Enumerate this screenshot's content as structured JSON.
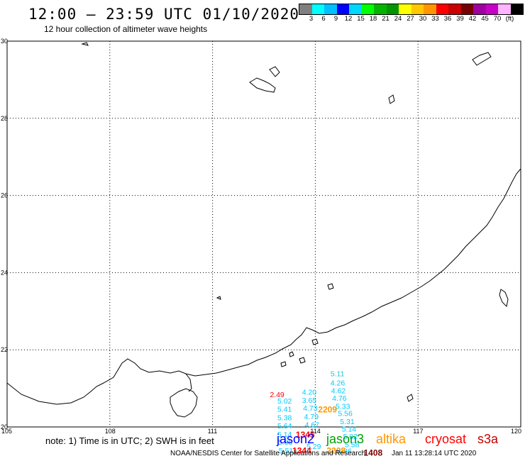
{
  "header": {
    "title": "12:00 – 23:59 UTC 01/10/2020",
    "subtitle": "12 hour collection of altimeter wave heights"
  },
  "colorbar": {
    "colors": [
      "#7f7f7f",
      "#00ffff",
      "#00bfff",
      "#0000ff",
      "#00d7ff",
      "#00ff00",
      "#00b400",
      "#009600",
      "#ffff00",
      "#ffc800",
      "#ff9600",
      "#ff0000",
      "#c80000",
      "#780000",
      "#a000a0",
      "#c800c8",
      "#ffb4ff",
      "#000000"
    ],
    "labels": [
      "3",
      "6",
      "9",
      "12",
      "15",
      "18",
      "21",
      "24",
      "27",
      "30",
      "33",
      "36",
      "39",
      "42",
      "45",
      "70",
      "(ft)"
    ]
  },
  "axes": {
    "lat_labels": [
      "30",
      "28",
      "26",
      "24",
      "22",
      "20"
    ],
    "lon_labels": [
      "105",
      "108",
      "111",
      "114",
      "117",
      "120"
    ]
  },
  "wave_labels": [
    {
      "text": "5.11",
      "lat": 21.39,
      "lon": 114.65,
      "color": "#20c8c8"
    },
    {
      "text": "4.26",
      "lat": 21.15,
      "lon": 114.65,
      "color": "#00c8ff"
    },
    {
      "text": "4.62",
      "lat": 20.95,
      "lon": 114.67,
      "color": "#00c8ff"
    },
    {
      "text": "4.76",
      "lat": 20.75,
      "lon": 114.7,
      "color": "#00c8ff"
    },
    {
      "text": "5.33",
      "lat": 20.54,
      "lon": 114.8,
      "color": "#00c8ff"
    },
    {
      "text": "5.56",
      "lat": 20.36,
      "lon": 114.87,
      "color": "#00c8ff"
    },
    {
      "text": "5.31",
      "lat": 20.15,
      "lon": 114.93,
      "color": "#00c8ff"
    },
    {
      "text": "5.14",
      "lat": 19.95,
      "lon": 114.98,
      "color": "#00c8ff"
    },
    {
      "text": "5.02",
      "lat": 19.76,
      "lon": 115.02,
      "color": "#00c8ff"
    },
    {
      "text": "5.58",
      "lat": 19.55,
      "lon": 115.07,
      "color": "#00c8ff"
    },
    {
      "text": "4.86",
      "lat": 19.38,
      "lon": 114.85,
      "color": "#00c8ff"
    },
    {
      "text": "4.20",
      "lat": 20.91,
      "lon": 113.82,
      "color": "#00c8ff"
    },
    {
      "text": "3.65",
      "lat": 20.7,
      "lon": 113.82,
      "color": "#00c8ff"
    },
    {
      "text": "4.73",
      "lat": 20.5,
      "lon": 113.85,
      "color": "#00c8ff"
    },
    {
      "text": "4.79",
      "lat": 20.28,
      "lon": 113.88,
      "color": "#00c8ff"
    },
    {
      "text": "4.67",
      "lat": 20.06,
      "lon": 113.9,
      "color": "#00c8ff"
    },
    {
      "text": "5.29",
      "lat": 19.5,
      "lon": 113.95,
      "color": "#00c8ff"
    },
    {
      "text": "5.02",
      "lat": 20.68,
      "lon": 113.1,
      "color": "#00c8ff"
    },
    {
      "text": "5.41",
      "lat": 20.47,
      "lon": 113.1,
      "color": "#00c8ff"
    },
    {
      "text": "5.38",
      "lat": 20.25,
      "lon": 113.1,
      "color": "#00c8ff"
    },
    {
      "text": "5.64",
      "lat": 20.04,
      "lon": 113.1,
      "color": "#00c8ff"
    },
    {
      "text": "5.14",
      "lat": 19.82,
      "lon": 113.1,
      "color": "#00c8ff"
    },
    {
      "text": "5.85",
      "lat": 19.61,
      "lon": 113.12,
      "color": "#00c8ff"
    },
    {
      "text": "5.51",
      "lat": 19.39,
      "lon": 113.14,
      "color": "#00c8ff"
    },
    {
      "text": "2.49",
      "lat": 20.85,
      "lon": 112.88,
      "color": "#ff0000"
    }
  ],
  "pass_labels": [
    {
      "text": "2209",
      "lat": 20.45,
      "lon": 114.35,
      "color": "#ff9600"
    },
    {
      "text": "1345",
      "lat": 19.8,
      "lon": 113.7,
      "color": "#ff0000"
    },
    {
      "text": "1344",
      "lat": 19.38,
      "lon": 113.6,
      "color": "#ff0000"
    },
    {
      "text": "2208",
      "lat": 19.38,
      "lon": 114.6,
      "color": "#ff9600"
    },
    {
      "text": "1408",
      "lat": 19.33,
      "lon": 115.68,
      "color": "#780000"
    }
  ],
  "footer": {
    "note": "note: 1) Time is in UTC; 2) SWH is in feet",
    "satellites": [
      {
        "name": "jason2",
        "color": "#0000ff"
      },
      {
        "name": "jason3",
        "color": "#00a000"
      },
      {
        "name": "altika",
        "color": "#ff9600"
      },
      {
        "name": "cryosat",
        "color": "#ff0000"
      },
      {
        "name": "s3a",
        "color": "#c80000"
      }
    ],
    "credit": "NOAA/NESDIS Center for Satellite Applications and Research",
    "timestamp": "Jan 11 13:28:14 UTC 2020"
  }
}
